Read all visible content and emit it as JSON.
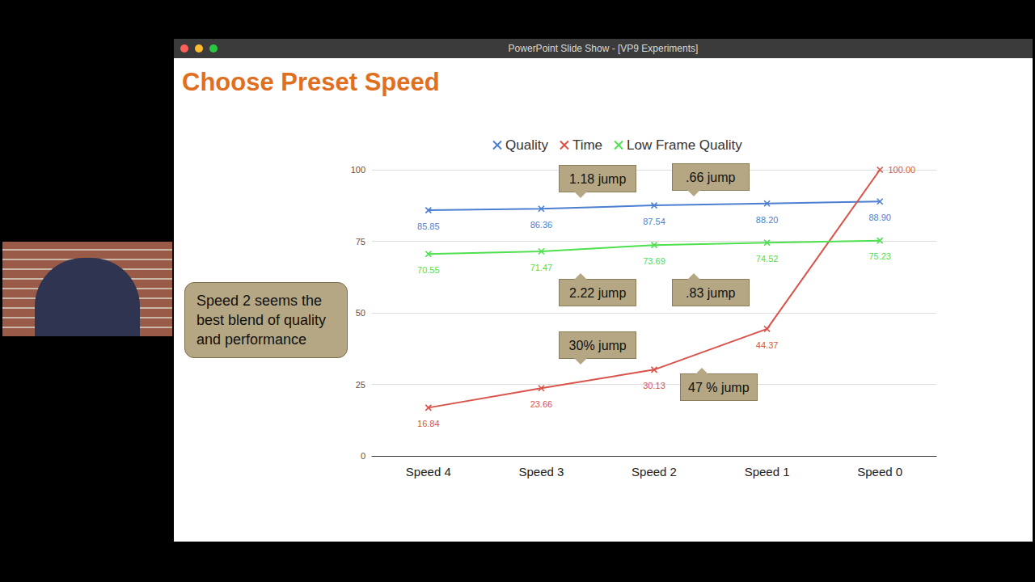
{
  "window_title": "PowerPoint Slide Show - [VP9 Experiments]",
  "chart_data": {
    "type": "line",
    "title": "Choose Preset Speed",
    "categories": [
      "Speed 4",
      "Speed 3",
      "Speed 2",
      "Speed 1",
      "Speed 0"
    ],
    "series": [
      {
        "name": "Quality",
        "color": "#4c7fd0",
        "marker": "x",
        "values": [
          85.85,
          86.36,
          87.54,
          88.2,
          88.9
        ],
        "value_labels": [
          "85.85",
          "86.36",
          "87.54",
          "88.20",
          "88.90"
        ]
      },
      {
        "name": "Time",
        "color": "#d9534a",
        "marker": "x",
        "values": [
          16.84,
          23.66,
          30.13,
          44.37,
          100.0
        ],
        "value_labels": [
          "16.84",
          "23.66",
          "30.13",
          "44.37",
          "100.00"
        ]
      },
      {
        "name": "Low Frame Quality",
        "color": "#4fe04f",
        "marker": "x",
        "values": [
          70.55,
          71.47,
          73.69,
          74.52,
          75.23
        ],
        "value_labels": [
          "70.55",
          "71.47",
          "73.69",
          "74.52",
          "75.23"
        ]
      }
    ],
    "ylim": [
      0,
      100
    ],
    "yticks": [
      0,
      25,
      50,
      75,
      100
    ],
    "grid": true,
    "legend": "top",
    "data_labels": true,
    "annotations": [
      "1.18 jump",
      ".66 jump",
      "2.22 jump",
      ".83 jump",
      "30% jump",
      "47 % jump",
      "Speed 2 seems the best blend of quality and performance"
    ]
  }
}
